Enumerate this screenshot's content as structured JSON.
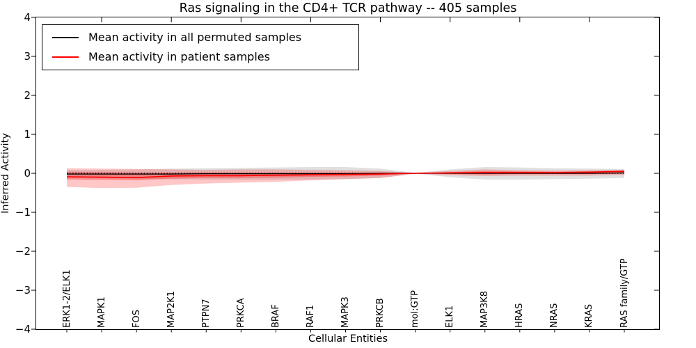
{
  "chart_data": {
    "type": "line",
    "title": "Ras signaling in the CD4+ TCR pathway -- 405 samples",
    "xlabel": "Cellular Entities",
    "ylabel": "Inferred Activity",
    "ylim": [
      -4,
      4
    ],
    "yticks": [
      "4",
      "3",
      "2",
      "1",
      "0",
      "−1",
      "−2",
      "−3",
      "−4"
    ],
    "grid": false,
    "legend_position": "upper left",
    "categories": [
      "ERK1-2/ELK1",
      "MAPK1",
      "FOS",
      "MAP2K1",
      "PTPN7",
      "PRKCA",
      "BRAF",
      "RAF1",
      "MAPK3",
      "PRKCB",
      "mol:GTP",
      "ELK1",
      "MAP3K8",
      "HRAS",
      "NRAS",
      "KRAS",
      "RAS family/GTP"
    ],
    "legend": [
      {
        "label": "Mean activity in all permuted samples",
        "color": "#000000"
      },
      {
        "label": "Mean activity in patient samples",
        "color": "#ff0000"
      }
    ],
    "series": [
      {
        "name": "Mean activity in all permuted samples",
        "color": "#000000",
        "values": [
          -0.02,
          -0.02,
          -0.02,
          -0.02,
          -0.01,
          -0.01,
          -0.01,
          -0.01,
          -0.01,
          0,
          0,
          0,
          0,
          0,
          0,
          0,
          0.01
        ]
      },
      {
        "name": "Mean activity in patient samples",
        "color": "#ff0000",
        "values": [
          -0.09,
          -0.1,
          -0.11,
          -0.07,
          -0.06,
          -0.06,
          -0.05,
          -0.04,
          -0.03,
          -0.02,
          0,
          0.01,
          0.02,
          0.02,
          0.02,
          0.03,
          0.05
        ]
      }
    ],
    "zero_line": {
      "style": "dotted",
      "color": "#000000",
      "value": 0
    },
    "bands": [
      {
        "name": "permuted-samples-band",
        "color": "#000000",
        "opacity": 0.12,
        "upper": [
          0.08,
          0.09,
          0.1,
          0.12,
          0.13,
          0.14,
          0.15,
          0.16,
          0.16,
          0.12,
          0.01,
          0.1,
          0.16,
          0.15,
          0.13,
          0.12,
          0.11
        ],
        "lower": [
          -0.12,
          -0.13,
          -0.14,
          -0.15,
          -0.16,
          -0.16,
          -0.16,
          -0.16,
          -0.15,
          -0.12,
          -0.01,
          -0.1,
          -0.16,
          -0.16,
          -0.15,
          -0.14,
          -0.12
        ]
      },
      {
        "name": "patient-outer-band",
        "color": "#ff0000",
        "opacity": 0.22,
        "upper": [
          0.13,
          0.12,
          0.11,
          0.1,
          0.09,
          0.1,
          0.1,
          0.09,
          0.08,
          0.06,
          0.01,
          0.06,
          0.1,
          0.08,
          0.07,
          0.08,
          0.09
        ],
        "lower": [
          -0.35,
          -0.38,
          -0.37,
          -0.3,
          -0.26,
          -0.24,
          -0.22,
          -0.18,
          -0.15,
          -0.12,
          -0.01,
          -0.05,
          -0.07,
          -0.06,
          -0.06,
          -0.06,
          -0.04
        ]
      },
      {
        "name": "patient-inner-band",
        "color": "#ff0000",
        "opacity": 0.28,
        "upper": [
          0.04,
          0.03,
          0.02,
          0.02,
          0.02,
          0.02,
          0.02,
          0.02,
          0.02,
          0.01,
          0.0,
          0.03,
          0.06,
          0.05,
          0.04,
          0.05,
          0.07
        ],
        "lower": [
          -0.16,
          -0.17,
          -0.18,
          -0.14,
          -0.12,
          -0.12,
          -0.11,
          -0.09,
          -0.08,
          -0.06,
          0.0,
          -0.02,
          -0.03,
          -0.02,
          -0.02,
          -0.02,
          -0.01
        ]
      }
    ]
  }
}
